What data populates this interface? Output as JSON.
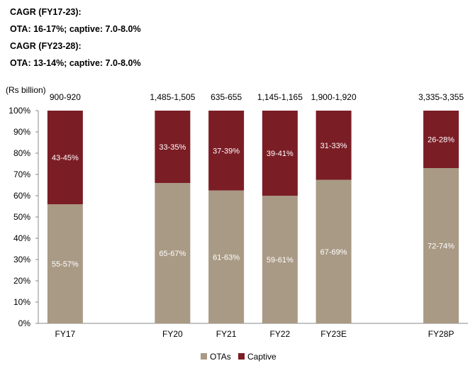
{
  "header": {
    "cagr_lines": [
      "CAGR (FY17-23):",
      "OTA: 16-17%; captive: 7.0-8.0%",
      "CAGR (FY23-28):",
      "OTA: 13-14%; captive: 7.0-8.0%"
    ]
  },
  "colors": {
    "otas": "#A99A85",
    "captive": "#7B1D25",
    "axis": "#888888"
  },
  "chart_data": {
    "type": "bar",
    "stacked": true,
    "percent": true,
    "unit_label": "(Rs billion)",
    "ylim": [
      0,
      100
    ],
    "yticks": [
      "0%",
      "10%",
      "20%",
      "30%",
      "40%",
      "50%",
      "60%",
      "70%",
      "80%",
      "90%",
      "100%"
    ],
    "categories": [
      "FY17",
      "FY20",
      "FY21",
      "FY22",
      "FY23E",
      "FY28P"
    ],
    "slot_index": [
      0,
      2,
      3,
      4,
      5,
      7
    ],
    "slot_count": 8,
    "totals": [
      "900-920",
      "1,485-1,505",
      "635-655",
      "1,145-1,165",
      "1,900-1,920",
      "3,335-3,355"
    ],
    "series": [
      {
        "name": "OTAs",
        "values": [
          56,
          66,
          62.5,
          60,
          67.5,
          73
        ],
        "labels": [
          "55-57%",
          "65-67%",
          "61-63%",
          "59-61%",
          "67-69%",
          "72-74%"
        ]
      },
      {
        "name": "Captive",
        "values": [
          44,
          34,
          37.5,
          40,
          32.5,
          27
        ],
        "labels": [
          "43-45%",
          "33-35%",
          "37-39%",
          "39-41%",
          "31-33%",
          "26-28%"
        ]
      }
    ],
    "legend": [
      "OTAs",
      "Captive"
    ],
    "legend_position": "bottom-center"
  }
}
